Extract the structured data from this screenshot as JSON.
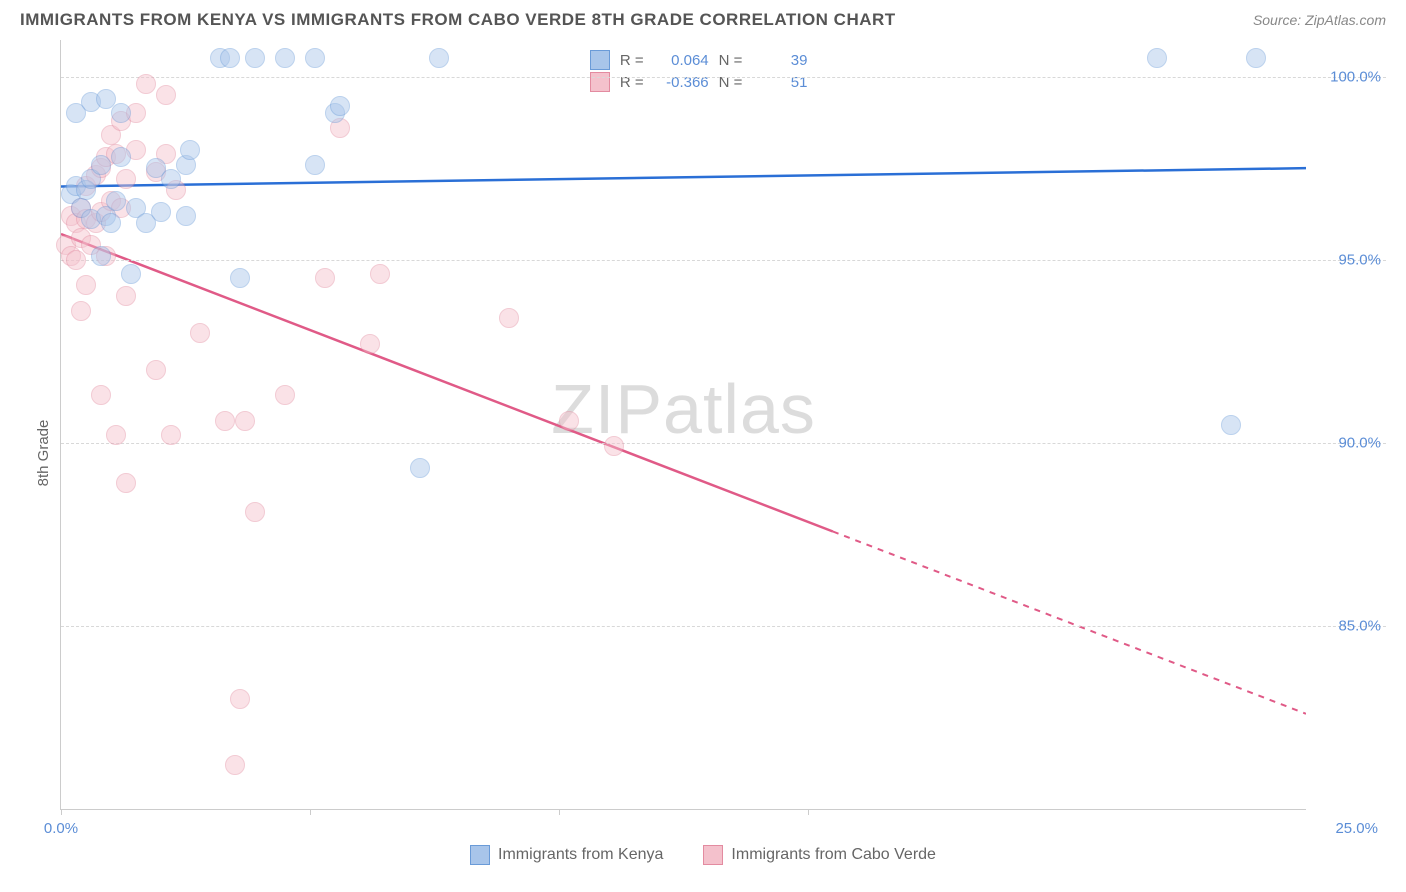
{
  "title": "IMMIGRANTS FROM KENYA VS IMMIGRANTS FROM CABO VERDE 8TH GRADE CORRELATION CHART",
  "source": "Source: ZipAtlas.com",
  "y_axis_title": "8th Grade",
  "watermark_a": "ZIP",
  "watermark_b": "atlas",
  "chart": {
    "type": "scatter",
    "xlim": [
      0,
      25
    ],
    "ylim": [
      80,
      101
    ],
    "y_ticks": [
      85.0,
      90.0,
      95.0,
      100.0
    ],
    "y_tick_labels": [
      "85.0%",
      "90.0%",
      "95.0%",
      "100.0%"
    ],
    "x_ticks": [
      0,
      5,
      10,
      15
    ],
    "x_tick_label_0": "0.0%",
    "x_tick_label_end": "25.0%",
    "background_color": "#ffffff",
    "grid_color": "#d8d8d8",
    "marker_radius": 10,
    "marker_opacity": 0.45,
    "series": [
      {
        "name": "Immigrants from Kenya",
        "color_fill": "#a8c5ea",
        "color_stroke": "#6a9bd8",
        "R": "0.064",
        "N": "39",
        "line": {
          "x1": 0,
          "y1": 97.0,
          "x2": 25,
          "y2": 97.5,
          "color": "#2a6fd6",
          "width": 2.5,
          "solid_until_x": 25
        },
        "points": [
          [
            0.2,
            96.8
          ],
          [
            0.3,
            97.0
          ],
          [
            0.4,
            96.4
          ],
          [
            0.5,
            96.9
          ],
          [
            0.6,
            97.2
          ],
          [
            0.6,
            96.1
          ],
          [
            0.8,
            97.6
          ],
          [
            0.9,
            96.2
          ],
          [
            1.0,
            96.0
          ],
          [
            1.1,
            96.6
          ],
          [
            1.2,
            97.8
          ],
          [
            0.8,
            95.1
          ],
          [
            1.5,
            96.4
          ],
          [
            1.7,
            96.0
          ],
          [
            1.9,
            97.5
          ],
          [
            2.0,
            96.3
          ],
          [
            2.2,
            97.2
          ],
          [
            2.5,
            97.6
          ],
          [
            2.5,
            96.2
          ],
          [
            2.6,
            98.0
          ],
          [
            3.2,
            100.5
          ],
          [
            3.4,
            100.5
          ],
          [
            3.9,
            100.5
          ],
          [
            4.5,
            100.5
          ],
          [
            5.1,
            100.5
          ],
          [
            5.1,
            97.6
          ],
          [
            5.5,
            99.0
          ],
          [
            5.6,
            99.2
          ],
          [
            7.6,
            100.5
          ],
          [
            3.6,
            94.5
          ],
          [
            1.4,
            94.6
          ],
          [
            7.2,
            89.3
          ],
          [
            23.5,
            90.5
          ],
          [
            22.0,
            100.5
          ],
          [
            24.0,
            100.5
          ],
          [
            0.3,
            99.0
          ],
          [
            0.6,
            99.3
          ],
          [
            0.9,
            99.4
          ],
          [
            1.2,
            99.0
          ]
        ]
      },
      {
        "name": "Immigrants from Cabo Verde",
        "color_fill": "#f4c1cc",
        "color_stroke": "#e38ba0",
        "R": "-0.366",
        "N": "51",
        "line": {
          "x1": 0,
          "y1": 95.7,
          "x2": 25,
          "y2": 82.6,
          "color": "#e05a87",
          "width": 2.5,
          "solid_until_x": 15.5
        },
        "points": [
          [
            0.1,
            95.4
          ],
          [
            0.2,
            95.1
          ],
          [
            0.2,
            96.2
          ],
          [
            0.3,
            96.0
          ],
          [
            0.3,
            95.0
          ],
          [
            0.4,
            96.4
          ],
          [
            0.4,
            95.6
          ],
          [
            0.5,
            97.0
          ],
          [
            0.5,
            96.1
          ],
          [
            0.6,
            95.4
          ],
          [
            0.7,
            97.3
          ],
          [
            0.7,
            96.0
          ],
          [
            0.8,
            97.5
          ],
          [
            0.8,
            96.3
          ],
          [
            0.9,
            97.8
          ],
          [
            0.9,
            95.1
          ],
          [
            1.0,
            98.4
          ],
          [
            1.0,
            96.6
          ],
          [
            1.1,
            97.9
          ],
          [
            1.2,
            96.4
          ],
          [
            1.2,
            98.8
          ],
          [
            1.3,
            97.2
          ],
          [
            1.5,
            98.0
          ],
          [
            1.5,
            99.0
          ],
          [
            1.7,
            99.8
          ],
          [
            1.9,
            97.4
          ],
          [
            2.1,
            97.9
          ],
          [
            2.3,
            96.9
          ],
          [
            2.1,
            99.5
          ],
          [
            0.5,
            94.3
          ],
          [
            0.4,
            93.6
          ],
          [
            1.3,
            94.0
          ],
          [
            1.9,
            92.0
          ],
          [
            0.8,
            91.3
          ],
          [
            1.1,
            90.2
          ],
          [
            1.3,
            88.9
          ],
          [
            2.2,
            90.2
          ],
          [
            3.3,
            90.6
          ],
          [
            3.7,
            90.6
          ],
          [
            3.9,
            88.1
          ],
          [
            3.6,
            83.0
          ],
          [
            3.5,
            81.2
          ],
          [
            5.3,
            94.5
          ],
          [
            5.6,
            98.6
          ],
          [
            6.4,
            94.6
          ],
          [
            9.0,
            93.4
          ],
          [
            10.2,
            90.6
          ],
          [
            11.1,
            89.9
          ],
          [
            6.2,
            92.7
          ],
          [
            4.5,
            91.3
          ],
          [
            2.8,
            93.0
          ]
        ]
      }
    ]
  },
  "legend_top": {
    "R_label": "R =",
    "N_label": "N ="
  },
  "bottom_legend": {
    "a": "Immigrants from Kenya",
    "b": "Immigrants from Cabo Verde"
  }
}
